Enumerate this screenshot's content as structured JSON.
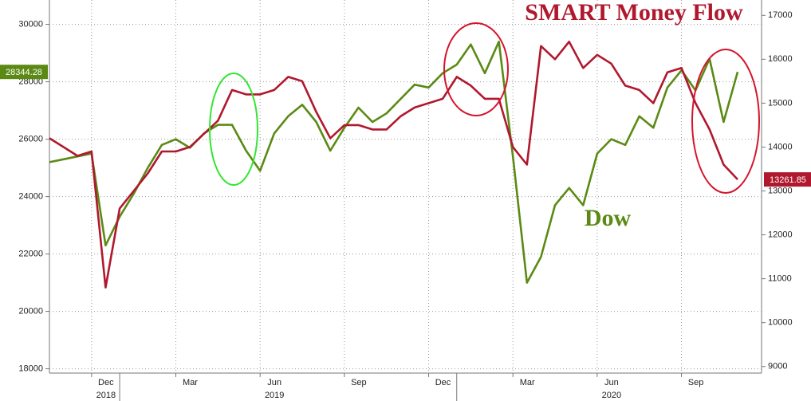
{
  "chart_data": {
    "type": "line",
    "categories": [
      null,
      null,
      null,
      "Dec",
      null,
      null,
      null,
      null,
      null,
      "Mar",
      null,
      null,
      null,
      null,
      null,
      "Jun",
      null,
      null,
      null,
      null,
      null,
      "Sep",
      null,
      null,
      null,
      null,
      null,
      "Dec",
      null,
      null,
      null,
      null,
      null,
      "Mar",
      null,
      null,
      null,
      null,
      null,
      "Jun",
      null,
      null,
      null,
      null,
      null,
      "Sep",
      null,
      null,
      null,
      null
    ],
    "years": [
      "2018",
      "2019",
      "2020"
    ],
    "series": [
      {
        "name": "Dow",
        "color": "#5b8a14",
        "values": [
          25200,
          25300,
          25400,
          25500,
          22300,
          23300,
          24100,
          25000,
          25800,
          26000,
          25700,
          26200,
          26500,
          26500,
          25600,
          24900,
          26200,
          26800,
          27200,
          26600,
          25600,
          26400,
          27100,
          26600,
          26900,
          27400,
          27900,
          27800,
          28300,
          28600,
          29300,
          28300,
          29400,
          25400,
          21000,
          21900,
          23700,
          24300,
          23700,
          25500,
          26000,
          25800,
          26800,
          26400,
          27800,
          28400,
          27700,
          28800,
          26600,
          28344.28
        ]
      },
      {
        "name": "SMART Money Flow",
        "color": "#b0182e",
        "axis": "y2",
        "values": [
          14200,
          14000,
          13800,
          13900,
          10800,
          12600,
          13000,
          13400,
          13900,
          13900,
          14000,
          14300,
          14600,
          15300,
          15200,
          15200,
          15300,
          15600,
          15500,
          14800,
          14200,
          14500,
          14500,
          14400,
          14400,
          14700,
          14900,
          15000,
          15100,
          15600,
          15400,
          15100,
          15100,
          14000,
          13600,
          16300,
          16000,
          16400,
          15800,
          16100,
          15900,
          15400,
          15300,
          15000,
          15700,
          15800,
          15000,
          14400,
          13600,
          13261.85
        ]
      }
    ],
    "ylim": [
      17850,
      30850
    ],
    "yticks": [
      18000,
      20000,
      22000,
      24000,
      26000,
      28000,
      30000
    ],
    "y2lim": [
      8850,
      17350
    ],
    "y2ticks": [
      9000,
      10000,
      11000,
      12000,
      13000,
      14000,
      15000,
      16000,
      17000
    ],
    "grid": true
  }
}
